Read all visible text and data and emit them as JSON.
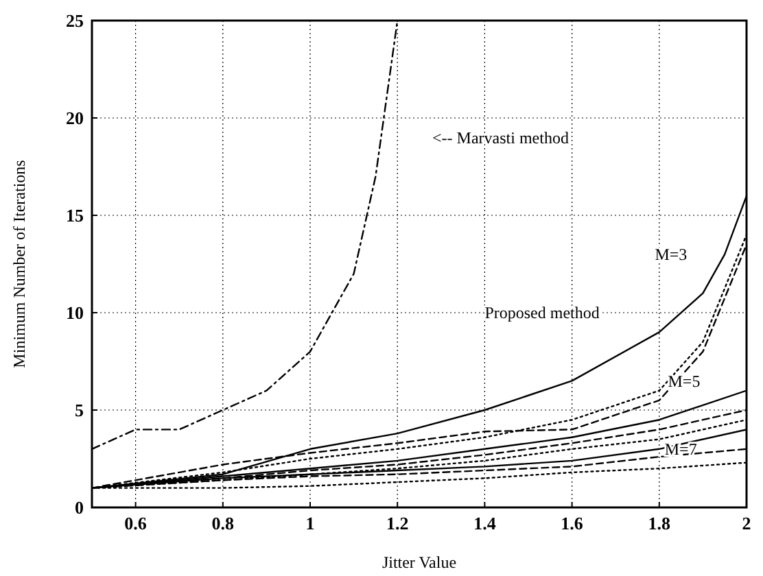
{
  "chart_data": {
    "type": "line",
    "xlabel": "Jitter Value",
    "ylabel": "Minimum Number of Iterations",
    "xlim": [
      0.5,
      2
    ],
    "ylim": [
      0,
      25
    ],
    "xticks": [
      0.6,
      0.8,
      1,
      1.2,
      1.4,
      1.6,
      1.8,
      2
    ],
    "yticks": [
      0,
      5,
      10,
      15,
      20,
      25
    ],
    "grid": true,
    "marker": "none",
    "series": [
      {
        "color": "#000000",
        "line_style": "dashdot",
        "x": [
          0.5,
          0.6,
          0.7,
          0.8,
          0.9,
          1.0,
          1.1,
          1.15,
          1.2
        ],
        "values": [
          3,
          4,
          4,
          5,
          6,
          8,
          12,
          17,
          25
        ]
      },
      {
        "color": "#000000",
        "line_style": "solid",
        "x": [
          0.5,
          0.8,
          1.0,
          1.2,
          1.4,
          1.6,
          1.8,
          1.9,
          1.95,
          2.0
        ],
        "values": [
          1,
          1.7,
          3,
          3.8,
          5,
          6.5,
          9,
          11,
          13,
          16
        ]
      },
      {
        "color": "#000000",
        "line_style": "dashed",
        "x": [
          0.5,
          0.8,
          1.0,
          1.2,
          1.4,
          1.6,
          1.8,
          1.9,
          2.0
        ],
        "values": [
          1,
          2.2,
          2.8,
          3.3,
          3.9,
          4,
          5.5,
          8,
          13.5
        ]
      },
      {
        "color": "#000000",
        "line_style": "dotted",
        "x": [
          0.5,
          0.8,
          1.0,
          1.2,
          1.4,
          1.6,
          1.8,
          1.9,
          2.0
        ],
        "values": [
          1,
          1.8,
          2.5,
          3,
          3.6,
          4.5,
          6,
          8.5,
          14
        ]
      },
      {
        "color": "#000000",
        "line_style": "solid",
        "x": [
          0.5,
          0.8,
          1.0,
          1.2,
          1.4,
          1.6,
          1.8,
          2.0
        ],
        "values": [
          1,
          1.6,
          2,
          2.4,
          3,
          3.6,
          4.5,
          6
        ]
      },
      {
        "color": "#000000",
        "line_style": "dashed",
        "x": [
          0.5,
          0.8,
          1.0,
          1.2,
          1.4,
          1.6,
          1.8,
          2.0
        ],
        "values": [
          1,
          1.5,
          1.9,
          2.2,
          2.7,
          3.3,
          4,
          5
        ]
      },
      {
        "color": "#000000",
        "line_style": "dotted",
        "x": [
          0.5,
          0.8,
          1.0,
          1.2,
          1.4,
          1.6,
          1.8,
          2.0
        ],
        "values": [
          1,
          1.4,
          1.7,
          2,
          2.4,
          3,
          3.5,
          4.5
        ]
      },
      {
        "color": "#000000",
        "line_style": "solid",
        "x": [
          0.5,
          0.8,
          1.0,
          1.2,
          1.4,
          1.6,
          1.8,
          2.0
        ],
        "values": [
          1,
          1.5,
          1.7,
          1.9,
          2.1,
          2.4,
          3,
          4
        ]
      },
      {
        "color": "#000000",
        "line_style": "dashed",
        "x": [
          0.5,
          0.8,
          1.0,
          1.2,
          1.4,
          1.6,
          1.8,
          2.0
        ],
        "values": [
          1,
          1.4,
          1.6,
          1.7,
          1.9,
          2.1,
          2.6,
          3
        ]
      },
      {
        "color": "#000000",
        "line_style": "dotted",
        "x": [
          0.5,
          0.8,
          1.0,
          1.2,
          1.4,
          1.6,
          1.8,
          2.0
        ],
        "values": [
          1,
          1,
          1.1,
          1.3,
          1.5,
          1.8,
          2,
          2.3
        ]
      }
    ],
    "annotations": [
      "<-- Marvasti method",
      "Proposed method",
      "M=3",
      "M=5",
      "M=7"
    ]
  }
}
